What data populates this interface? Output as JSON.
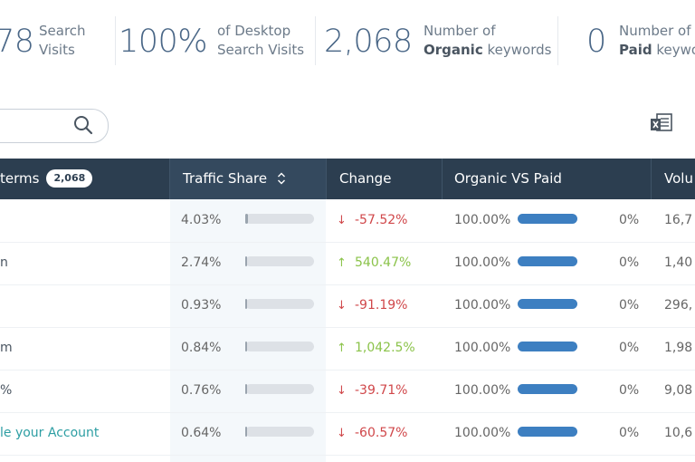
{
  "stats": [
    {
      "number": "78",
      "line1": "Search",
      "line2": "Visits",
      "bold": ""
    },
    {
      "number": "100%",
      "line1": "of Desktop",
      "line2": "Search Visits",
      "bold": ""
    },
    {
      "number": "2,068",
      "line1": "Number of",
      "line2": " keywords",
      "bold": "Organic"
    },
    {
      "number": "0",
      "line1": "Number of",
      "line2": " keywo",
      "bold": "Paid"
    }
  ],
  "table": {
    "headers": {
      "terms": "terms",
      "terms_count": "2,068",
      "traffic_share": "Traffic Share",
      "change": "Change",
      "organic_vs_paid": "Organic VS Paid",
      "volume": "Volu"
    },
    "rows": [
      {
        "term": "",
        "share": "4.03%",
        "share_fraction": 0.04,
        "change": "-57.52%",
        "direction": "down",
        "organic": "100.00%",
        "organic_fraction": 1.0,
        "paid": "0%",
        "volume": "16,7"
      },
      {
        "term": "n",
        "share": "2.74%",
        "share_fraction": 0.03,
        "change": "540.47%",
        "direction": "up",
        "organic": "100.00%",
        "organic_fraction": 1.0,
        "paid": "0%",
        "volume": "1,40"
      },
      {
        "term": "",
        "share": "0.93%",
        "share_fraction": 0.0,
        "change": "-91.19%",
        "direction": "down",
        "organic": "100.00%",
        "organic_fraction": 1.0,
        "paid": "0%",
        "volume": "296,"
      },
      {
        "term": "m",
        "share": "0.84%",
        "share_fraction": 0.0,
        "change": "1,042.5%",
        "direction": "up",
        "organic": "100.00%",
        "organic_fraction": 1.0,
        "paid": "0%",
        "volume": "1,98"
      },
      {
        "term": "%",
        "share": "0.76%",
        "share_fraction": 0.0,
        "change": "-39.71%",
        "direction": "down",
        "organic": "100.00%",
        "organic_fraction": 1.0,
        "paid": "0%",
        "volume": "9,08"
      },
      {
        "term": "le your Account",
        "share": "0.64%",
        "share_fraction": 0.0,
        "change": "-60.57%",
        "direction": "down",
        "organic": "100.00%",
        "organic_fraction": 1.0,
        "paid": "0%",
        "volume": "10,6"
      }
    ]
  },
  "icons": {
    "search": "search-icon",
    "export": "excel-export-icon",
    "sort": "sort-icon"
  },
  "colors": {
    "header_bg": "#2c3e50",
    "organic_bar": "#3d7fc1",
    "change_down": "#d0474a",
    "change_up": "#8bc34a",
    "link": "#2d9ea3"
  }
}
